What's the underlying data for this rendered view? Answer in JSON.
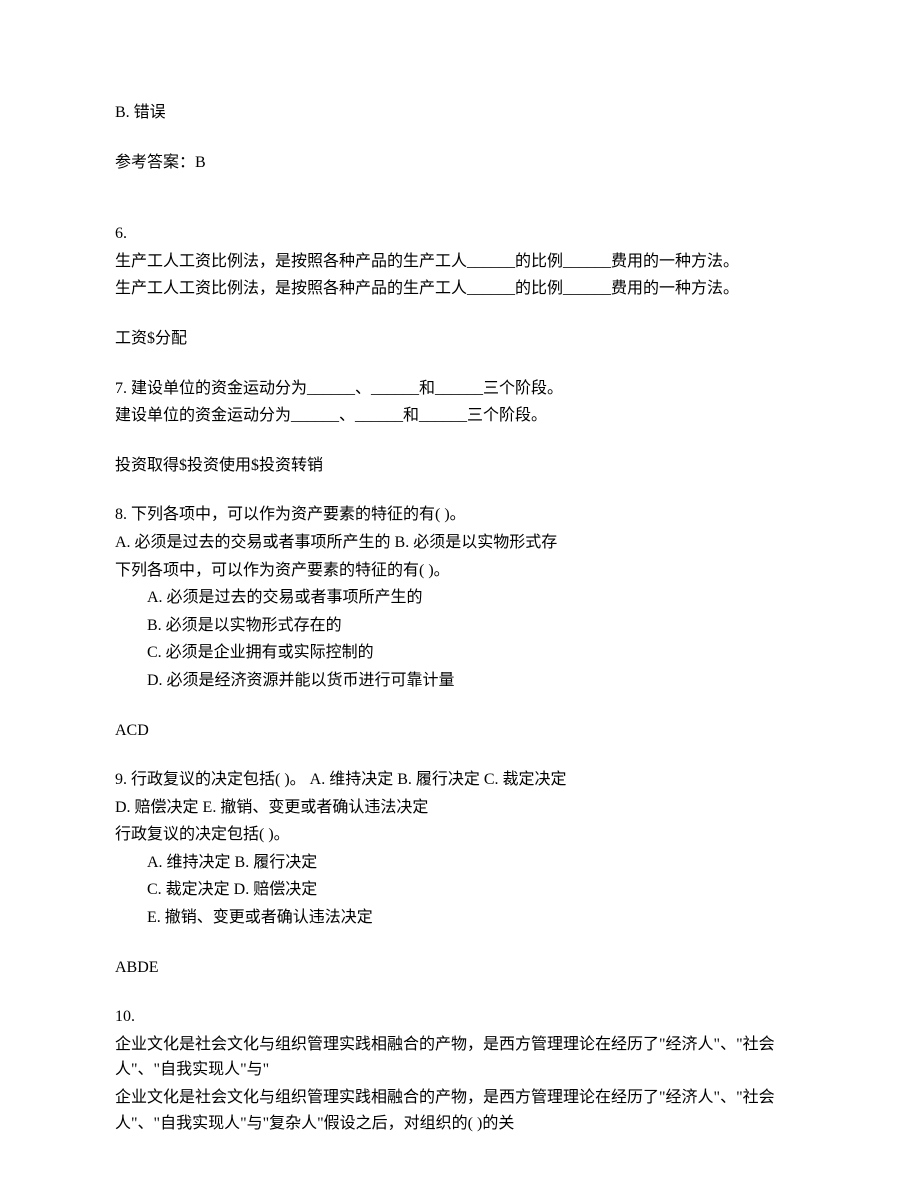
{
  "q5_tail": {
    "option_b": "B. 错误",
    "answer_label": "参考答案：B"
  },
  "q6": {
    "number": "6.",
    "stem1": "生产工人工资比例法，是按照各种产品的生产工人______的比例______费用的一种方法。",
    "stem2": "生产工人工资比例法，是按照各种产品的生产工人______的比例______费用的一种方法。",
    "answer": "工资$分配"
  },
  "q7": {
    "line1": "7.  建设单位的资金运动分为______、______和______三个阶段。",
    "line2": "建设单位的资金运动分为______、______和______三个阶段。",
    "answer": "投资取得$投资使用$投资转销"
  },
  "q8": {
    "line1": "8.  下列各项中，可以作为资产要素的特征的有(  )。",
    "line2": "A. 必须是过去的交易或者事项所产生的   B. 必须是以实物形式存",
    "line3": "下列各项中，可以作为资产要素的特征的有(  )。",
    "optA": "A. 必须是过去的交易或者事项所产生的",
    "optB": "B. 必须是以实物形式存在的",
    "optC": "C. 必须是企业拥有或实际控制的",
    "optD": "D. 必须是经济资源并能以货币进行可靠计量",
    "answer": "ACD"
  },
  "q9": {
    "line1": "9.  行政复议的决定包括(  )。   A. 维持决定   B. 履行决定   C. 裁定决定",
    "line2": "D. 赔偿决定   E. 撤销、变更或者确认违法决定",
    "line3": "行政复议的决定包括(  )。",
    "optAB": "A. 维持决定   B. 履行决定",
    "optCD": "C. 裁定决定   D. 赔偿决定",
    "optE": "E. 撤销、变更或者确认违法决定",
    "answer": "ABDE"
  },
  "q10": {
    "number": "10.",
    "line1": "企业文化是社会文化与组织管理实践相融合的产物，是西方管理理论在经历了\"经济人\"、\"社会人\"、\"自我实现人\"与\"",
    "line2": "企业文化是社会文化与组织管理实践相融合的产物，是西方管理理论在经历了\"经济人\"、\"社会人\"、\"自我实现人\"与\"复杂人\"假设之后，对组织的(  )的关"
  }
}
